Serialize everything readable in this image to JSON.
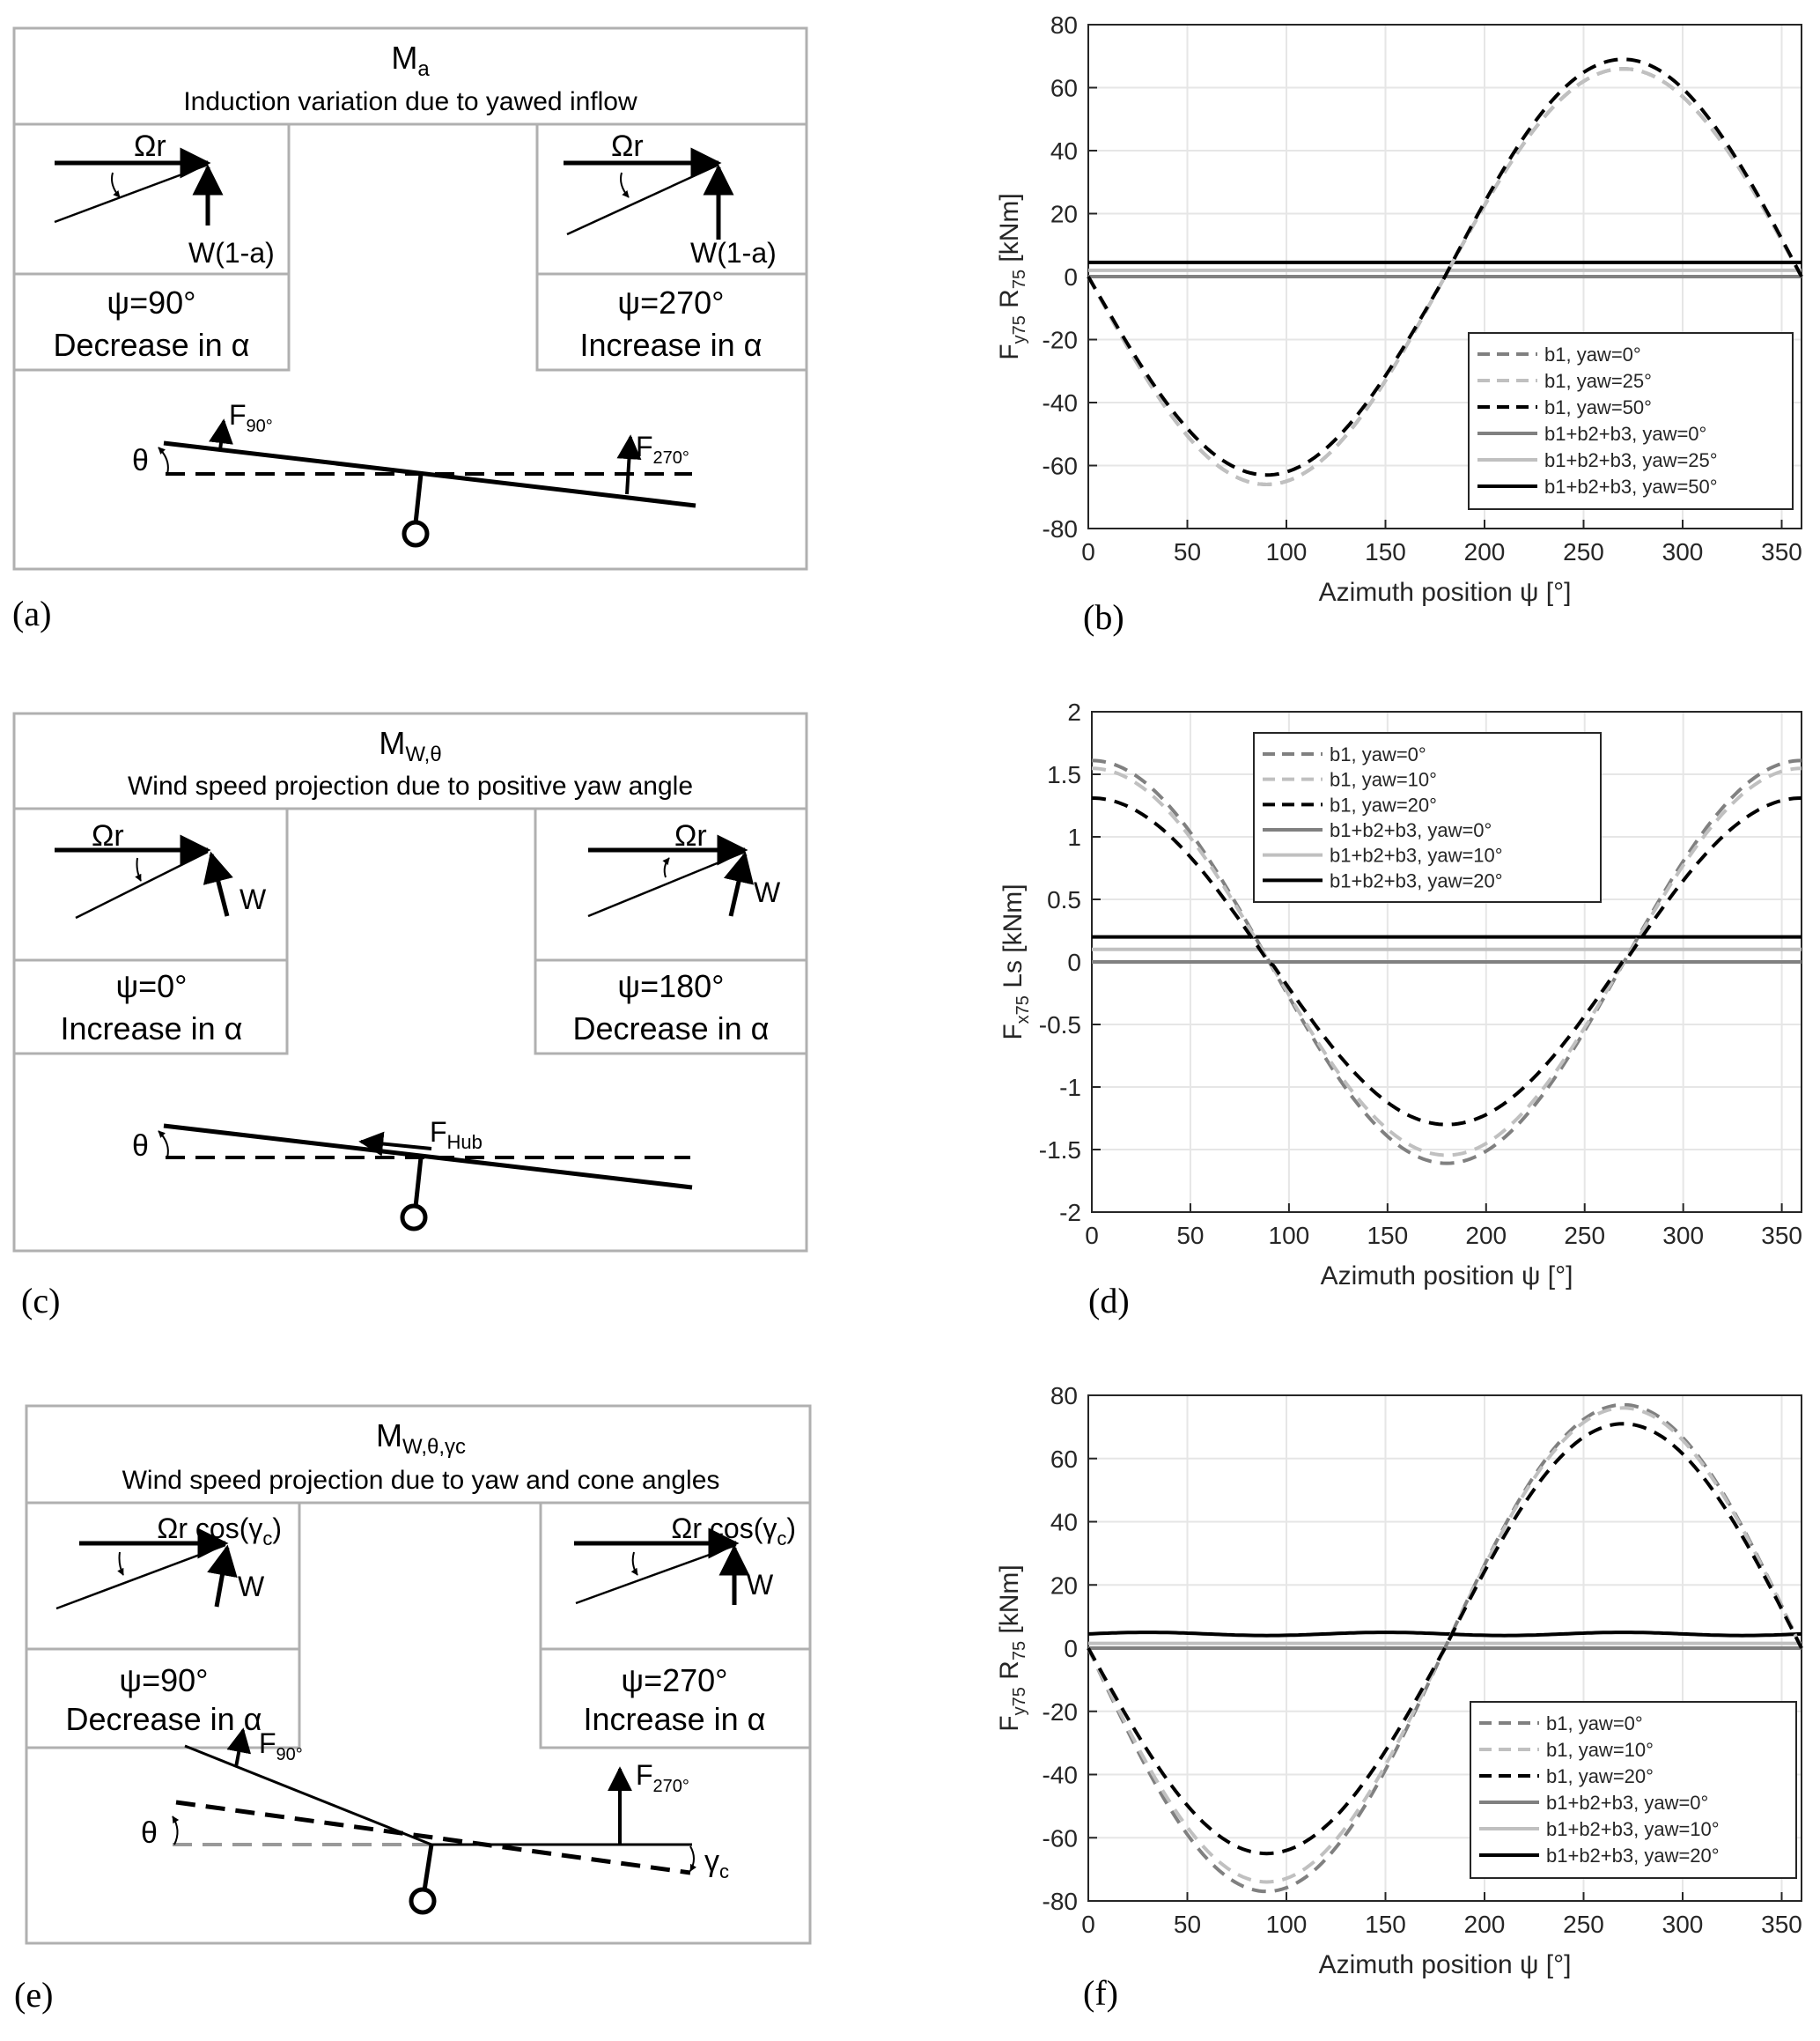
{
  "panels": {
    "a": {
      "label": "(a)",
      "title": "M",
      "title_sub": "a",
      "subtitle": "Induction variation due to yawed inflow",
      "left_speed": "Ωr",
      "left_vec": "W(1-a)",
      "left_psi": "ψ=90°",
      "left_effect": "Decrease in α",
      "right_speed": "Ωr",
      "right_vec": "W(1-a)",
      "right_psi": "ψ=270°",
      "right_effect": "Increase in α",
      "theta": "θ",
      "force_left": "F",
      "force_left_sub": "90°",
      "force_right": "F",
      "force_right_sub": "270°"
    },
    "c": {
      "label": "(c)",
      "title": "M",
      "title_sub": "W,θ",
      "subtitle": "Wind speed projection due to positive yaw angle",
      "left_speed": "Ωr",
      "left_vec": "W",
      "left_psi": "ψ=0°",
      "left_effect": "Increase in α",
      "right_speed": "Ωr",
      "right_vec": "W",
      "right_psi": "ψ=180°",
      "right_effect": "Decrease in α",
      "theta": "θ",
      "force": "F",
      "force_sub": "Hub"
    },
    "e": {
      "label": "(e)",
      "title": "M",
      "title_sub": "W,θ,γc",
      "subtitle": "Wind speed projection due to yaw and cone angles",
      "left_speed": "Ωr cos(γ",
      "left_speed_sub": "c",
      "left_speed_end": ")",
      "left_vec": "W",
      "left_psi": "ψ=90°",
      "left_effect": "Decrease in α",
      "right_speed": "Ωr cos(γ",
      "right_speed_sub": "c",
      "right_speed_end": ")",
      "right_vec": "W",
      "right_psi": "ψ=270°",
      "right_effect": "Increase in α",
      "theta": "θ",
      "gamma": "γ",
      "gamma_sub": "c",
      "force_left": "F",
      "force_left_sub": "90°",
      "force_right": "F",
      "force_right_sub": "270°"
    }
  },
  "chart_data": [
    {
      "panel": "(b)",
      "type": "line",
      "xlabel": "Azimuth position ψ [°]",
      "ylabel": "F_y75 R_75 [kNm]",
      "ylabel_parts": [
        "F",
        "y75",
        " R",
        "75",
        " [kNm]"
      ],
      "xlim": [
        0,
        360
      ],
      "ylim": [
        -80,
        80
      ],
      "xticks": [
        0,
        50,
        100,
        150,
        200,
        250,
        300,
        350
      ],
      "yticks": [
        -80,
        -60,
        -40,
        -20,
        0,
        20,
        40,
        60,
        80
      ],
      "grid": true,
      "legend_position": "lower-right",
      "series": [
        {
          "name": "b1, yaw=0°",
          "kind": "sine",
          "amp": 66,
          "offset": 0,
          "phase": 0,
          "color": "#808080",
          "dash": true
        },
        {
          "name": "b1, yaw=25°",
          "kind": "sine",
          "amp": 66,
          "offset": 0,
          "phase": 0,
          "color": "#c0c0c0",
          "dash": true
        },
        {
          "name": "b1, yaw=50°",
          "kind": "sine",
          "amp": 66,
          "offset": 3,
          "phase": 0,
          "color": "#000000",
          "dash": true
        },
        {
          "name": "b1+b2+b3, yaw=0°",
          "kind": "const",
          "value": 0,
          "color": "#808080",
          "dash": false
        },
        {
          "name": "b1+b2+b3, yaw=25°",
          "kind": "const",
          "value": 2,
          "color": "#c0c0c0",
          "dash": false
        },
        {
          "name": "b1+b2+b3, yaw=50°",
          "kind": "const",
          "value": 4.5,
          "color": "#000000",
          "dash": false
        }
      ]
    },
    {
      "panel": "(d)",
      "type": "line",
      "xlabel": "Azimuth position ψ [°]",
      "ylabel": "F_x75 Ls [kNm]",
      "ylabel_parts": [
        "F",
        "x75",
        " Ls [kNm]",
        "",
        ""
      ],
      "xlim": [
        0,
        360
      ],
      "ylim": [
        -2,
        2
      ],
      "xticks": [
        0,
        50,
        100,
        150,
        200,
        250,
        300,
        350
      ],
      "yticks": [
        -2,
        -1.5,
        -1,
        -0.5,
        0,
        0.5,
        1,
        1.5,
        2
      ],
      "grid": true,
      "legend_position": "upper-center",
      "series": [
        {
          "name": "b1, yaw=0°",
          "kind": "cosine",
          "amp": 1.61,
          "offset": 0,
          "color": "#808080",
          "dash": true
        },
        {
          "name": "b1, yaw=10°",
          "kind": "cosine",
          "amp": 1.55,
          "offset": 0.07,
          "color": "#c0c0c0",
          "dash": true
        },
        {
          "name": "b1, yaw=20°",
          "kind": "cosine",
          "amp": 1.32,
          "offset": 0.14,
          "color": "#000000",
          "dash": true
        },
        {
          "name": "b1+b2+b3, yaw=0°",
          "kind": "const",
          "value": 0,
          "color": "#808080",
          "dash": false
        },
        {
          "name": "b1+b2+b3, yaw=10°",
          "kind": "const",
          "value": 0.1,
          "color": "#c0c0c0",
          "dash": false
        },
        {
          "name": "b1+b2+b3, yaw=20°",
          "kind": "const",
          "value": 0.2,
          "color": "#000000",
          "dash": false
        }
      ]
    },
    {
      "panel": "(f)",
      "type": "line",
      "xlabel": "Azimuth position ψ [°]",
      "ylabel": "F_y75 R_75 [kNm]",
      "ylabel_parts": [
        "F",
        "y75",
        " R",
        "75",
        " [kNm]"
      ],
      "xlim": [
        0,
        360
      ],
      "ylim": [
        -80,
        80
      ],
      "xticks": [
        0,
        50,
        100,
        150,
        200,
        250,
        300,
        350
      ],
      "yticks": [
        -80,
        -60,
        -40,
        -20,
        0,
        20,
        40,
        60,
        80
      ],
      "grid": true,
      "legend_position": "lower-right",
      "series": [
        {
          "name": "b1, yaw=0°",
          "kind": "sine",
          "amp": 77,
          "offset": 0,
          "phase": 0,
          "color": "#808080",
          "dash": true
        },
        {
          "name": "b1, yaw=10°",
          "kind": "sine",
          "amp": 75,
          "offset": 1,
          "phase": 0,
          "color": "#c0c0c0",
          "dash": true
        },
        {
          "name": "b1, yaw=20°",
          "kind": "sine",
          "amp": 68,
          "offset": 3,
          "phase": 0,
          "color": "#000000",
          "dash": true
        },
        {
          "name": "b1+b2+b3, yaw=0°",
          "kind": "const",
          "value": 0,
          "color": "#808080",
          "dash": false
        },
        {
          "name": "b1+b2+b3, yaw=10°",
          "kind": "const",
          "value": 1.5,
          "color": "#c0c0c0",
          "dash": false
        },
        {
          "name": "b1+b2+b3, yaw=20°",
          "kind": "ripple",
          "value": 4.5,
          "ripple": 0.5,
          "color": "#000000",
          "dash": false
        }
      ]
    }
  ]
}
